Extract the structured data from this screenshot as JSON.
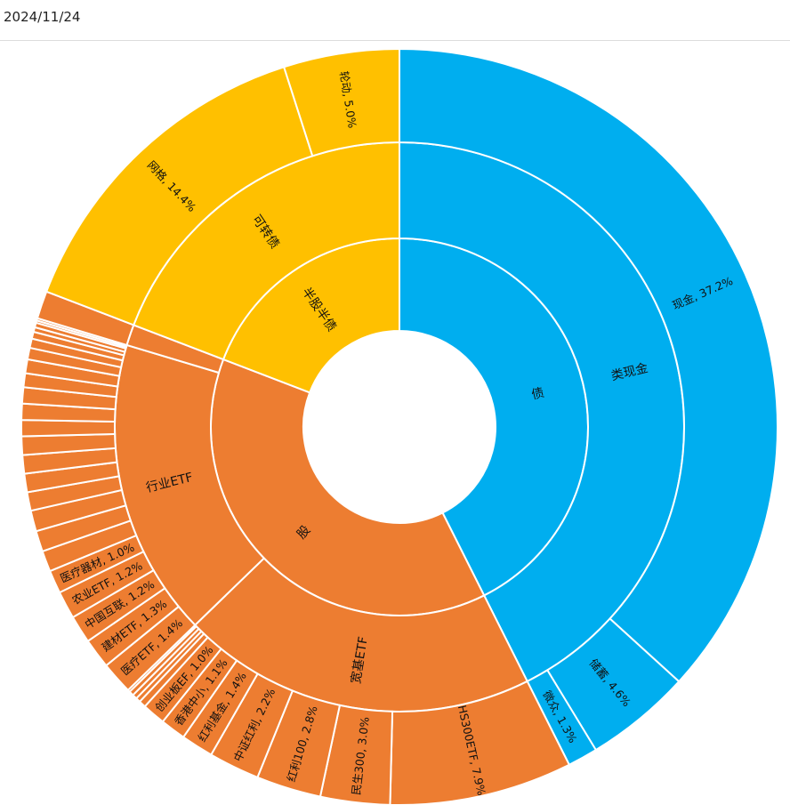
{
  "header": {
    "date": "2024/11/24"
  },
  "colors": {
    "bond": "#00aeef",
    "hybrid": "#ffc000",
    "equity": "#ed7d31",
    "stroke": "#ffffff"
  },
  "chart_data": {
    "type": "sunburst",
    "title": "",
    "start_angle_deg": 0,
    "direction": "clockwise",
    "tree": [
      {
        "name": "债",
        "color": "#00aeef",
        "children": [
          {
            "name": "类现金",
            "children": [
              {
                "name": "现金",
                "value": 37.2,
                "label": "现金, 37.2%"
              },
              {
                "name": "储蓄",
                "value": 4.6,
                "label": "储蓄, 4.6%"
              },
              {
                "name": "微众",
                "value": 1.3,
                "label": "微众, 1.3%"
              }
            ]
          }
        ]
      },
      {
        "name": "股",
        "color": "#ed7d31",
        "children": [
          {
            "name": "宽基ETF",
            "children": [
              {
                "name": "HS300ETF",
                "value": 7.9,
                "label": "HS300ETF, 7.9%"
              },
              {
                "name": "民生300",
                "value": 3.0,
                "label": "民生300, 3.0%"
              },
              {
                "name": "红利100",
                "value": 2.8,
                "label": "红利100, 2.8%"
              },
              {
                "name": "中证红利",
                "value": 2.2,
                "label": "中证红利, 2.2%"
              },
              {
                "name": "红利基金",
                "value": 1.4,
                "label": "红利基金, 1.4%"
              },
              {
                "name": "香港中小",
                "value": 1.1,
                "label": "香港中小, 1.1%"
              },
              {
                "name": "创业板EF",
                "value": 1.0,
                "label": "创业板EF, 1.0%"
              },
              {
                "name": "",
                "value": 0.3,
                "label": ""
              },
              {
                "name": "",
                "value": 0.2,
                "label": ""
              },
              {
                "name": "",
                "value": 0.2,
                "label": ""
              },
              {
                "name": "",
                "value": 0.2,
                "label": ""
              },
              {
                "name": "",
                "value": 0.1,
                "label": ""
              }
            ]
          },
          {
            "name": "行业ETF",
            "children": [
              {
                "name": "医疗ETF",
                "value": 1.4,
                "label": "医疗ETF, 1.4%"
              },
              {
                "name": "建材ETF",
                "value": 1.3,
                "label": "建材ETF, 1.3%"
              },
              {
                "name": "中国互联",
                "value": 1.2,
                "label": "中国互联, 1.2%"
              },
              {
                "name": "农业ETF",
                "value": 1.2,
                "label": "农业ETF, 1.2%"
              },
              {
                "name": "医疗器材",
                "value": 1.0,
                "label": "医疗器材, 1.0%"
              },
              {
                "name": "",
                "value": 0.9,
                "label": ""
              },
              {
                "name": "",
                "value": 0.9,
                "label": ""
              },
              {
                "name": "",
                "value": 0.9,
                "label": ""
              },
              {
                "name": "",
                "value": 0.8,
                "label": ""
              },
              {
                "name": "",
                "value": 0.8,
                "label": ""
              },
              {
                "name": "",
                "value": 0.8,
                "label": ""
              },
              {
                "name": "",
                "value": 0.8,
                "label": ""
              },
              {
                "name": "",
                "value": 0.7,
                "label": ""
              },
              {
                "name": "",
                "value": 0.7,
                "label": ""
              },
              {
                "name": "",
                "value": 0.7,
                "label": ""
              },
              {
                "name": "",
                "value": 0.6,
                "label": ""
              },
              {
                "name": "",
                "value": 0.6,
                "label": ""
              },
              {
                "name": "",
                "value": 0.5,
                "label": ""
              },
              {
                "name": "",
                "value": 0.4,
                "label": ""
              },
              {
                "name": "",
                "value": 0.3,
                "label": ""
              },
              {
                "name": "",
                "value": 0.2,
                "label": ""
              },
              {
                "name": "",
                "value": 0.2,
                "label": ""
              },
              {
                "name": "",
                "value": 0.1,
                "label": ""
              },
              {
                "name": "",
                "value": 0.1,
                "label": ""
              }
            ]
          },
          {
            "name": "",
            "children": [
              {
                "name": "",
                "value": 1.2,
                "label": ""
              }
            ]
          }
        ]
      },
      {
        "name": "半股半债",
        "color": "#ffc000",
        "children": [
          {
            "name": "可转债",
            "children": [
              {
                "name": "网格",
                "value": 14.4,
                "label": "网格, 14.4%"
              },
              {
                "name": "轮动",
                "value": 5.0,
                "label": "轮动, 5.0%"
              }
            ]
          }
        ]
      }
    ]
  }
}
